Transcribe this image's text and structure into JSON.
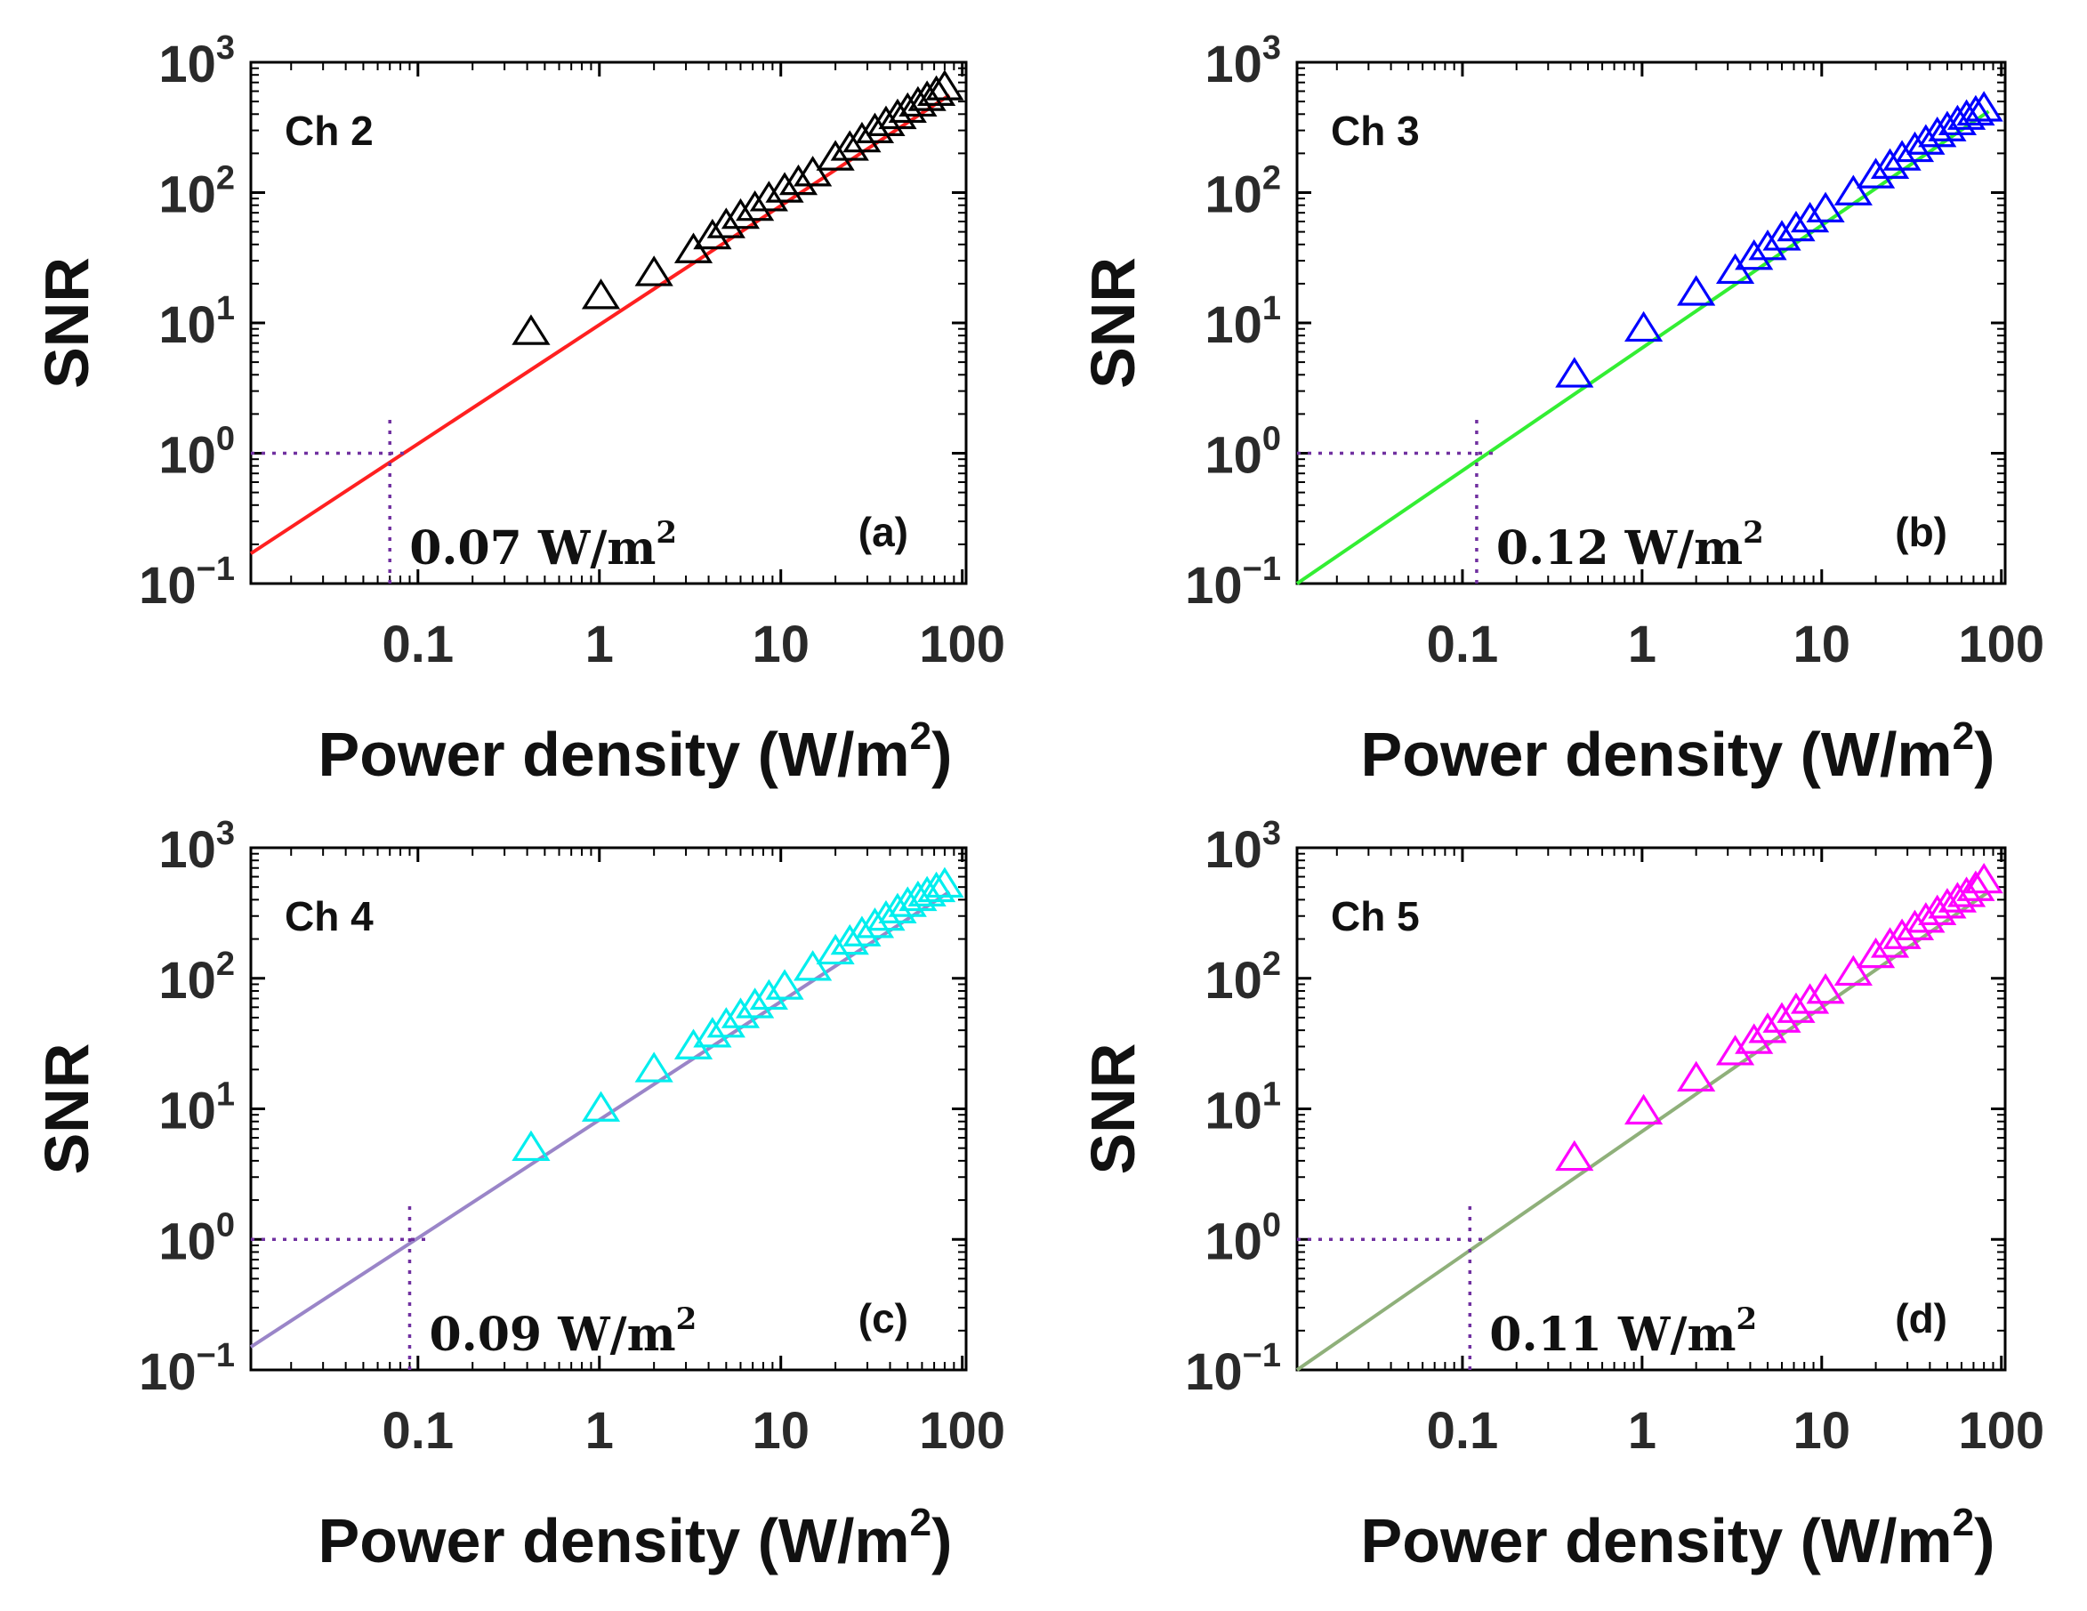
{
  "figure": {
    "colors": {
      "axes": "#000000",
      "guide": "#7030a0",
      "background": "#ffffff"
    }
  },
  "chart_data": [
    {
      "type": "scatter",
      "id": "a",
      "channel_label": "Ch 2",
      "panel_label": "(a)",
      "xlabel": "Power density (W/m",
      "xlabel_sup": "2",
      "xlabel_end": ")",
      "ylabel": "SNR",
      "xscale": "log",
      "yscale": "log",
      "xlim": [
        0.012,
        105
      ],
      "ylim": [
        0.1,
        1000
      ],
      "x_ticks": [
        0.1,
        1,
        10,
        100
      ],
      "x_tick_labels": [
        "0.1",
        "1",
        "10",
        "100"
      ],
      "y_ticks": [
        0.1,
        1,
        10,
        100,
        1000
      ],
      "y_tick_labels": [
        {
          "base": "10",
          "exp": "−1"
        },
        {
          "base": "10",
          "exp": "0"
        },
        {
          "base": "10",
          "exp": "1"
        },
        {
          "base": "10",
          "exp": "2"
        },
        {
          "base": "10",
          "exp": "3"
        }
      ],
      "marker": "triangle",
      "marker_color": "#000000",
      "fit_color": "#ff2020",
      "fit_line": {
        "x": [
          0.012,
          85
        ],
        "y": [
          0.17,
          560
        ]
      },
      "threshold": {
        "x": 0.07,
        "y": 1,
        "label_value": "0.07 W/m",
        "label_sup": "2"
      },
      "points": {
        "x": [
          0.42,
          1.02,
          2.0,
          3.3,
          4.2,
          5.0,
          6.0,
          7.2,
          8.6,
          10.5,
          12.5,
          15.0,
          20.0,
          24.0,
          28.0,
          33.0,
          38.0,
          44.0,
          50.0,
          57.0,
          64.0,
          72.0,
          80.0
        ],
        "y": [
          8.5,
          16,
          24,
          36,
          46,
          56,
          66,
          76,
          90,
          105,
          120,
          140,
          185,
          220,
          255,
          300,
          340,
          385,
          430,
          480,
          530,
          580,
          640
        ]
      }
    },
    {
      "type": "scatter",
      "id": "b",
      "channel_label": "Ch 3",
      "panel_label": "(b)",
      "xlabel": "Power density (W/m",
      "xlabel_sup": "2",
      "xlabel_end": ")",
      "ylabel": "SNR",
      "xscale": "log",
      "yscale": "log",
      "xlim": [
        0.012,
        105
      ],
      "ylim": [
        0.1,
        1000
      ],
      "x_ticks": [
        0.1,
        1,
        10,
        100
      ],
      "x_tick_labels": [
        "0.1",
        "1",
        "10",
        "100"
      ],
      "y_ticks": [
        0.1,
        1,
        10,
        100,
        1000
      ],
      "y_tick_labels": [
        {
          "base": "10",
          "exp": "−1"
        },
        {
          "base": "10",
          "exp": "0"
        },
        {
          "base": "10",
          "exp": "1"
        },
        {
          "base": "10",
          "exp": "2"
        },
        {
          "base": "10",
          "exp": "3"
        }
      ],
      "marker": "triangle",
      "marker_color": "#0000ff",
      "fit_color": "#33ee33",
      "fit_line": {
        "x": [
          0.012,
          85
        ],
        "y": [
          0.1,
          420
        ]
      },
      "threshold": {
        "x": 0.12,
        "y": 1,
        "label_value": "0.12 W/m",
        "label_sup": "2"
      },
      "points": {
        "x": [
          0.42,
          1.02,
          2.0,
          3.3,
          4.2,
          5.0,
          6.0,
          7.2,
          8.6,
          10.5,
          15.0,
          20.0,
          24.0,
          28.0,
          33.0,
          38.0,
          44.0,
          50.0,
          57.0,
          64.0,
          72.0,
          80.0
        ],
        "y": [
          4,
          9,
          17,
          25,
          32,
          38,
          45,
          53,
          62,
          74,
          100,
          135,
          160,
          185,
          215,
          245,
          280,
          310,
          345,
          380,
          410,
          440
        ]
      }
    },
    {
      "type": "scatter",
      "id": "c",
      "channel_label": "Ch 4",
      "panel_label": "(c)",
      "xlabel": "Power density (W/m",
      "xlabel_sup": "2",
      "xlabel_end": ")",
      "ylabel": "SNR",
      "xscale": "log",
      "yscale": "log",
      "xlim": [
        0.012,
        105
      ],
      "ylim": [
        0.1,
        1000
      ],
      "x_ticks": [
        0.1,
        1,
        10,
        100
      ],
      "x_tick_labels": [
        "0.1",
        "1",
        "10",
        "100"
      ],
      "y_ticks": [
        0.1,
        1,
        10,
        100,
        1000
      ],
      "y_tick_labels": [
        {
          "base": "10",
          "exp": "−1"
        },
        {
          "base": "10",
          "exp": "0"
        },
        {
          "base": "10",
          "exp": "1"
        },
        {
          "base": "10",
          "exp": "2"
        },
        {
          "base": "10",
          "exp": "3"
        }
      ],
      "marker": "triangle",
      "marker_color": "#00eeee",
      "fit_color": "#9a85c8",
      "fit_line": {
        "x": [
          0.012,
          85
        ],
        "y": [
          0.15,
          460
        ]
      },
      "threshold": {
        "x": 0.09,
        "y": 1,
        "label_value": "0.09 W/m",
        "label_sup": "2"
      },
      "points": {
        "x": [
          0.42,
          1.02,
          2.0,
          3.3,
          4.2,
          5.0,
          6.0,
          7.2,
          8.6,
          10.5,
          15.0,
          20.0,
          24.0,
          28.0,
          33.0,
          38.0,
          44.0,
          50.0,
          57.0,
          64.0,
          72.0,
          80.0
        ],
        "y": [
          5,
          10,
          20,
          30,
          37,
          44,
          52,
          62,
          72,
          86,
          120,
          160,
          190,
          220,
          255,
          290,
          330,
          370,
          410,
          445,
          480,
          520
        ]
      }
    },
    {
      "type": "scatter",
      "id": "d",
      "channel_label": "Ch 5",
      "panel_label": "(d)",
      "xlabel": "Power density (W/m",
      "xlabel_sup": "2",
      "xlabel_end": ")",
      "ylabel": "SNR",
      "xscale": "log",
      "yscale": "log",
      "xlim": [
        0.012,
        105
      ],
      "ylim": [
        0.1,
        1000
      ],
      "x_ticks": [
        0.1,
        1,
        10,
        100
      ],
      "x_tick_labels": [
        "0.1",
        "1",
        "10",
        "100"
      ],
      "y_ticks": [
        0.1,
        1,
        10,
        100,
        1000
      ],
      "y_tick_labels": [
        {
          "base": "10",
          "exp": "−1"
        },
        {
          "base": "10",
          "exp": "0"
        },
        {
          "base": "10",
          "exp": "1"
        },
        {
          "base": "10",
          "exp": "2"
        },
        {
          "base": "10",
          "exp": "3"
        }
      ],
      "marker": "triangle",
      "marker_color": "#ff00ff",
      "fit_color": "#8fb07a",
      "fit_line": {
        "x": [
          0.012,
          85
        ],
        "y": [
          0.1,
          460
        ]
      },
      "threshold": {
        "x": 0.11,
        "y": 1,
        "label_value": "0.11 W/m",
        "label_sup": "2"
      },
      "points": {
        "x": [
          0.42,
          1.02,
          2.0,
          3.3,
          4.2,
          5.0,
          6.0,
          7.2,
          8.6,
          10.5,
          15.0,
          20.0,
          24.0,
          28.0,
          33.0,
          38.0,
          44.0,
          50.0,
          57.0,
          64.0,
          72.0,
          80.0
        ],
        "y": [
          4.2,
          9.5,
          17,
          27,
          33,
          40,
          48,
          57,
          67,
          80,
          110,
          150,
          180,
          210,
          245,
          280,
          320,
          360,
          400,
          440,
          490,
          560
        ]
      }
    }
  ]
}
